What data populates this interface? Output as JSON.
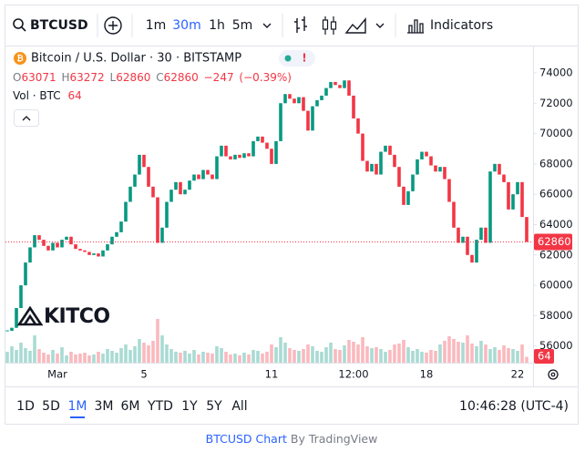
{
  "toolbar": {
    "symbol": "BTCUSD",
    "intervals": [
      "1m",
      "30m",
      "1h",
      "5m"
    ],
    "active_interval_index": 1,
    "indicators": "Indicators"
  },
  "chart_data": {
    "type": "candlestick",
    "title": "Bitcoin / U.S. Dollar · 30 · BITSTAMP",
    "ohlc": [
      {
        "key": "O",
        "value": 63071
      },
      {
        "key": "H",
        "value": 63272
      },
      {
        "key": "L",
        "value": 62860
      },
      {
        "key": "C",
        "value": 62860
      }
    ],
    "change": {
      "value": -247,
      "label": "−247"
    },
    "change_pct": {
      "value": -0.39,
      "label": "(−0.39%)"
    },
    "volume_title": "Vol · BTC",
    "up_color": "#089981",
    "down_color": "#f23645",
    "categories": [
      null,
      null,
      null,
      null,
      null,
      null,
      null,
      null,
      null,
      null,
      null,
      "Mar",
      null,
      null,
      null,
      null,
      null,
      null,
      null,
      null,
      null,
      null,
      null,
      null,
      null,
      null,
      null,
      null,
      null,
      null,
      "5",
      null,
      null,
      null,
      null,
      null,
      null,
      null,
      null,
      null,
      null,
      null,
      null,
      null,
      null,
      null,
      null,
      null,
      null,
      null,
      null,
      null,
      null,
      null,
      null,
      null,
      null,
      null,
      "11",
      null,
      null,
      null,
      null,
      null,
      null,
      null,
      null,
      null,
      null,
      null,
      null,
      null,
      null,
      null,
      null,
      null,
      "12:00",
      null,
      null,
      null,
      null,
      null,
      null,
      null,
      null,
      null,
      null,
      null,
      null,
      null,
      null,
      null,
      "18",
      null,
      null,
      null,
      null,
      null,
      null,
      null,
      null,
      null,
      null,
      null,
      null,
      null,
      null,
      null,
      null,
      null,
      null,
      null,
      "22",
      null,
      null
    ],
    "values": [
      57000,
      57200,
      58500,
      60000,
      61500,
      62500,
      63300,
      63000,
      62600,
      62300,
      62800,
      62500,
      63000,
      63200,
      62700,
      62400,
      62300,
      62200,
      62000,
      62100,
      61900,
      62300,
      62700,
      63200,
      63500,
      64200,
      65500,
      66500,
      67300,
      68600,
      67800,
      66500,
      65800,
      62800,
      63800,
      65500,
      66300,
      66800,
      66000,
      66300,
      66900,
      67300,
      67000,
      67600,
      67300,
      67000,
      68500,
      69200,
      68500,
      68300,
      68600,
      68400,
      68700,
      68500,
      69500,
      69800,
      69400,
      69000,
      68000,
      69500,
      72000,
      72600,
      72300,
      72000,
      72400,
      71500,
      70200,
      71800,
      72200,
      72500,
      73000,
      73400,
      73200,
      73000,
      73500,
      72500,
      71000,
      70000,
      68200,
      67500,
      68000,
      67300,
      68800,
      69200,
      68600,
      67800,
      66500,
      65300,
      66200,
      67300,
      68300,
      68800,
      68500,
      67900,
      67500,
      67800,
      67000,
      65500,
      63800,
      62800,
      63200,
      62000,
      61500,
      63000,
      63800,
      62800,
      67500,
      68000,
      67300,
      66800,
      65000,
      66000,
      66800,
      64500,
      62860
    ],
    "volume": [
      120,
      180,
      140,
      220,
      160,
      130,
      300,
      150,
      110,
      90,
      140,
      100,
      170,
      80,
      120,
      90,
      100,
      110,
      80,
      90,
      120,
      100,
      150,
      130,
      110,
      160,
      200,
      140,
      180,
      260,
      220,
      190,
      240,
      480,
      300,
      200,
      150,
      120,
      110,
      130,
      100,
      140,
      90,
      120,
      110,
      100,
      180,
      160,
      120,
      90,
      100,
      80,
      110,
      90,
      140,
      130,
      100,
      120,
      200,
      170,
      280,
      220,
      160,
      140,
      130,
      150,
      200,
      180,
      130,
      120,
      170,
      220,
      150,
      140,
      190,
      250,
      230,
      200,
      280,
      180,
      160,
      170,
      150,
      120,
      140,
      200,
      210,
      250,
      170,
      130,
      150,
      120,
      110,
      140,
      130,
      200,
      240,
      290,
      260,
      230,
      220,
      300,
      210,
      180,
      240,
      200,
      150,
      170,
      140,
      190,
      160,
      150,
      130,
      200,
      64
    ],
    "volume_lim": [
      0,
      600
    ],
    "ylim": [
      54900,
      75500
    ],
    "yticks": [
      56000,
      58000,
      60000,
      62000,
      64000,
      66000,
      68000,
      70000,
      72000,
      74000
    ],
    "last_price": 62860
  },
  "logo": "KITCO",
  "ranges": [
    "1D",
    "5D",
    "1M",
    "3M",
    "6M",
    "YTD",
    "1Y",
    "5Y",
    "All"
  ],
  "active_range_index": 2,
  "clock": "10:46:28 (UTC-4)",
  "footer": {
    "link": "BTCUSD Chart",
    "by": "By TradingView"
  }
}
